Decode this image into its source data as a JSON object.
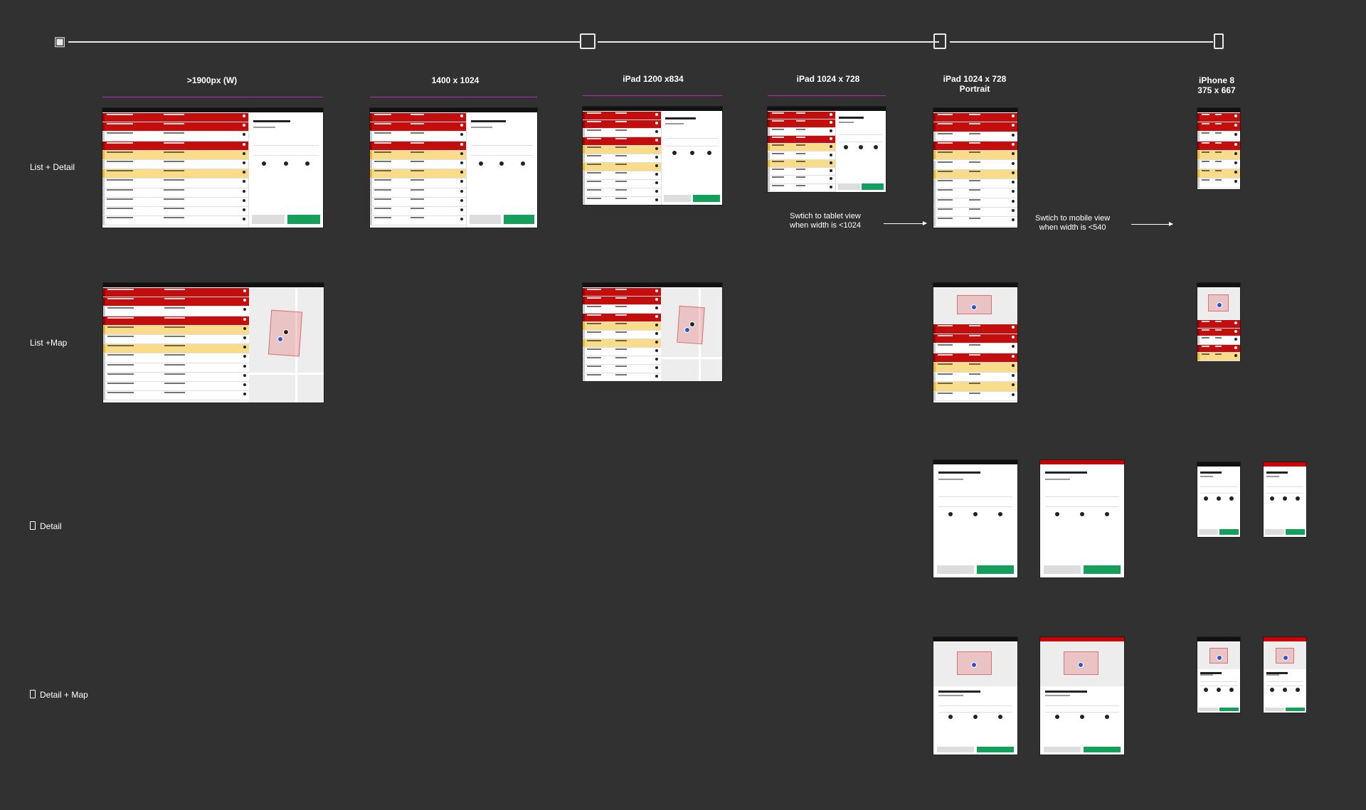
{
  "timeline": {
    "icons": [
      "laptop-icon",
      "monitor-icon",
      "tablet-icon",
      "phone-icon"
    ]
  },
  "columns": [
    ">1900px (W)",
    "1400 x 1024",
    "iPad 1200 x834",
    "iPad 1024 x 728",
    "iPad 1024 x 728\nPortrait",
    "iPhone 8\n375 x 667"
  ],
  "rows": {
    "list_detail": "List + Detail",
    "list_map": "List +Map",
    "detail": "Detail",
    "detail_map": "Detail + Map"
  },
  "notes": {
    "tablet_switch": "Swtich to tablet view\nwhen width is <1024",
    "mobile_switch": "Swtich to mobile view\nwhen width is <540"
  },
  "colors": {
    "background": "#313131",
    "arrived": "#c40d0d",
    "approaching": "#f8dc8a",
    "complete": "#14a05a"
  }
}
